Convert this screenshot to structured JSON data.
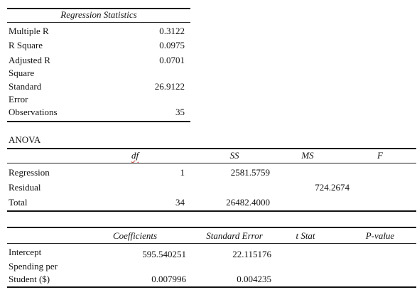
{
  "regression_statistics": {
    "title": "Regression Statistics",
    "rows": [
      {
        "label_lines": [
          "Multiple R"
        ],
        "value": "0.3122"
      },
      {
        "label_lines": [
          "R Square"
        ],
        "value": "0.0975"
      },
      {
        "label_lines": [
          "Adjusted R",
          "Square"
        ],
        "value": "0.0701"
      },
      {
        "label_lines": [
          "Standard",
          "Error"
        ],
        "value": "26.9122"
      },
      {
        "label_lines": [
          "Observations"
        ],
        "value": "35"
      }
    ]
  },
  "anova": {
    "title": "ANOVA",
    "headers": [
      "df",
      "SS",
      "MS",
      "F"
    ],
    "rows": [
      {
        "label": "Regression",
        "df": "1",
        "ss": "2581.5759",
        "ms": "",
        "f": ""
      },
      {
        "label": "Residual",
        "df": "",
        "ss": "",
        "ms": "724.2674",
        "f": ""
      },
      {
        "label": "Total",
        "df": "34",
        "ss": "26482.4000",
        "ms": "",
        "f": ""
      }
    ]
  },
  "coefficients": {
    "headers": [
      "Coefficients",
      "Standard Error",
      "t Stat",
      "P-value"
    ],
    "rows": [
      {
        "label_lines": [
          "Intercept"
        ],
        "coef": "595.540251",
        "se": "22.115176",
        "t": "",
        "p": ""
      },
      {
        "label_lines": [
          "Spending per",
          "Student ($)"
        ],
        "coef": "0.007996",
        "se": "0.004235",
        "t": "",
        "p": ""
      }
    ]
  }
}
